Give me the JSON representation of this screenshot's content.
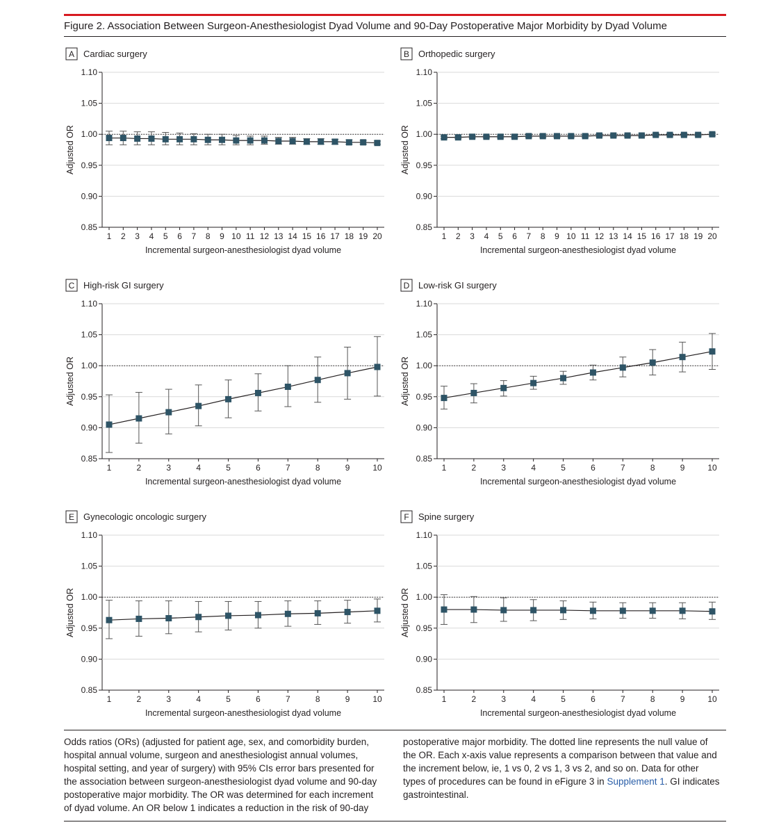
{
  "figure": {
    "title": "Figure 2. Association Between Surgeon-Anesthesiologist Dyad Volume and 90-Day Postoperative Major Morbidity by Dyad Volume"
  },
  "colors": {
    "accent_rule": "#d71920",
    "marker": "#2e5466",
    "line": "#231f20"
  },
  "chart_data": [
    {
      "panel": "A",
      "title": "Cardiac surgery",
      "type": "line",
      "xlabel": "Incremental surgeon-anesthesiologist dyad volume",
      "ylabel": "Adjusted OR",
      "ylim": [
        0.85,
        1.1
      ],
      "yticks": [
        "0.85",
        "0.90",
        "0.95",
        "1.00",
        "1.05",
        "1.10"
      ],
      "reference_line": 1.0,
      "x": [
        1,
        2,
        3,
        4,
        5,
        6,
        7,
        8,
        9,
        10,
        11,
        12,
        13,
        14,
        15,
        16,
        17,
        18,
        19,
        20
      ],
      "values": [
        0.994,
        0.994,
        0.993,
        0.993,
        0.992,
        0.992,
        0.992,
        0.991,
        0.991,
        0.99,
        0.99,
        0.99,
        0.989,
        0.989,
        0.988,
        0.988,
        0.988,
        0.987,
        0.987,
        0.986
      ],
      "ci_low": [
        0.983,
        0.983,
        0.983,
        0.983,
        0.983,
        0.983,
        0.983,
        0.983,
        0.983,
        0.983,
        0.983,
        0.984,
        0.984,
        0.984,
        0.984,
        0.984,
        0.984,
        0.984,
        0.984,
        0.984
      ],
      "ci_high": [
        1.005,
        1.005,
        1.004,
        1.004,
        1.003,
        1.002,
        1.001,
        1.0,
        1.0,
        0.998,
        0.997,
        0.997,
        0.995,
        0.995,
        0.993,
        0.993,
        0.992,
        0.991,
        0.99,
        0.989
      ]
    },
    {
      "panel": "B",
      "title": "Orthopedic surgery",
      "type": "line",
      "xlabel": "Incremental surgeon-anesthesiologist dyad volume",
      "ylabel": "Adjusted OR",
      "ylim": [
        0.85,
        1.1
      ],
      "yticks": [
        "0.85",
        "0.90",
        "0.95",
        "1.00",
        "1.05",
        "1.10"
      ],
      "reference_line": 1.0,
      "x": [
        1,
        2,
        3,
        4,
        5,
        6,
        7,
        8,
        9,
        10,
        11,
        12,
        13,
        14,
        15,
        16,
        17,
        18,
        19,
        20
      ],
      "values": [
        0.995,
        0.995,
        0.996,
        0.996,
        0.996,
        0.996,
        0.997,
        0.997,
        0.997,
        0.997,
        0.997,
        0.998,
        0.998,
        0.998,
        0.998,
        0.999,
        0.999,
        0.999,
        0.999,
        1.0
      ],
      "ci_low": [
        0.993,
        0.993,
        0.994,
        0.994,
        0.994,
        0.994,
        0.995,
        0.995,
        0.995,
        0.995,
        0.995,
        0.996,
        0.996,
        0.996,
        0.996,
        0.997,
        0.997,
        0.997,
        0.997,
        0.998
      ],
      "ci_high": [
        0.997,
        0.997,
        0.998,
        0.998,
        0.998,
        0.998,
        0.999,
        0.999,
        0.999,
        0.999,
        0.999,
        1.0,
        1.0,
        1.0,
        1.0,
        1.001,
        1.001,
        1.001,
        1.001,
        1.002
      ]
    },
    {
      "panel": "C",
      "title": "High-risk GI surgery",
      "type": "line",
      "xlabel": "Incremental surgeon-anesthesiologist dyad volume",
      "ylabel": "Adjusted OR",
      "ylim": [
        0.85,
        1.1
      ],
      "yticks": [
        "0.85",
        "0.90",
        "0.95",
        "1.00",
        "1.05",
        "1.10"
      ],
      "reference_line": 1.0,
      "x": [
        1,
        2,
        3,
        4,
        5,
        6,
        7,
        8,
        9,
        10
      ],
      "values": [
        0.905,
        0.915,
        0.925,
        0.935,
        0.946,
        0.956,
        0.966,
        0.977,
        0.988,
        0.998
      ],
      "ci_low": [
        0.86,
        0.875,
        0.89,
        0.903,
        0.916,
        0.927,
        0.934,
        0.941,
        0.946,
        0.951
      ],
      "ci_high": [
        0.953,
        0.957,
        0.962,
        0.969,
        0.977,
        0.987,
        1.0,
        1.014,
        1.03,
        1.047
      ]
    },
    {
      "panel": "D",
      "title": "Low-risk GI surgery",
      "type": "line",
      "xlabel": "Incremental surgeon-anesthesiologist dyad volume",
      "ylabel": "Adjusted OR",
      "ylim": [
        0.85,
        1.1
      ],
      "yticks": [
        "0.85",
        "0.90",
        "0.95",
        "1.00",
        "1.05",
        "1.10"
      ],
      "reference_line": 1.0,
      "x": [
        1,
        2,
        3,
        4,
        5,
        6,
        7,
        8,
        9,
        10
      ],
      "values": [
        0.948,
        0.956,
        0.964,
        0.972,
        0.98,
        0.989,
        0.997,
        1.005,
        1.014,
        1.023
      ],
      "ci_low": [
        0.93,
        0.94,
        0.951,
        0.962,
        0.97,
        0.977,
        0.982,
        0.985,
        0.99,
        0.994
      ],
      "ci_high": [
        0.967,
        0.971,
        0.976,
        0.983,
        0.991,
        1.001,
        1.014,
        1.026,
        1.038,
        1.052
      ]
    },
    {
      "panel": "E",
      "title": "Gynecologic oncologic surgery",
      "type": "line",
      "xlabel": "Incremental surgeon-anesthesiologist dyad volume",
      "ylabel": "Adjusted OR",
      "ylim": [
        0.85,
        1.1
      ],
      "yticks": [
        "0.85",
        "0.90",
        "0.95",
        "1.00",
        "1.05",
        "1.10"
      ],
      "reference_line": 1.0,
      "x": [
        1,
        2,
        3,
        4,
        5,
        6,
        7,
        8,
        9,
        10
      ],
      "values": [
        0.963,
        0.965,
        0.966,
        0.968,
        0.97,
        0.971,
        0.973,
        0.974,
        0.976,
        0.978
      ],
      "ci_low": [
        0.933,
        0.937,
        0.941,
        0.944,
        0.947,
        0.95,
        0.953,
        0.956,
        0.958,
        0.96
      ],
      "ci_high": [
        0.995,
        0.994,
        0.994,
        0.993,
        0.993,
        0.993,
        0.994,
        0.994,
        0.995,
        0.997
      ]
    },
    {
      "panel": "F",
      "title": "Spine surgery",
      "type": "line",
      "xlabel": "Incremental surgeon-anesthesiologist dyad volume",
      "ylabel": "Adjusted OR",
      "ylim": [
        0.85,
        1.1
      ],
      "yticks": [
        "0.85",
        "0.90",
        "0.95",
        "1.00",
        "1.05",
        "1.10"
      ],
      "reference_line": 1.0,
      "x": [
        1,
        2,
        3,
        4,
        5,
        6,
        7,
        8,
        9,
        10
      ],
      "values": [
        0.98,
        0.98,
        0.979,
        0.979,
        0.979,
        0.978,
        0.978,
        0.978,
        0.978,
        0.977
      ],
      "ci_low": [
        0.956,
        0.959,
        0.961,
        0.962,
        0.964,
        0.965,
        0.966,
        0.966,
        0.965,
        0.964
      ],
      "ci_high": [
        1.004,
        1.001,
        0.999,
        0.996,
        0.994,
        0.992,
        0.991,
        0.991,
        0.991,
        0.992
      ]
    }
  ],
  "caption": {
    "left": "Odds ratios (ORs) (adjusted for patient age, sex, and comorbidity burden, hospital annual volume, surgeon and anesthesiologist annual volumes, hospital setting, and year of surgery) with 95% CIs error bars presented for the association between surgeon-anesthesiologist dyad volume and 90-day postoperative major morbidity. The OR was determined for each increment of dyad volume. An OR below 1 indicates a reduction in the risk of 90-day",
    "right_before_link": "postoperative major morbidity. The dotted line represents the null value of the OR. Each x-axis value represents a comparison between that value and the increment below, ie, 1 vs 0, 2 vs 1, 3 vs 2, and so on. Data for other types of procedures can be found in eFigure 3 in ",
    "link_text": "Supplement 1",
    "right_after_link": ". GI indicates gastrointestinal."
  }
}
